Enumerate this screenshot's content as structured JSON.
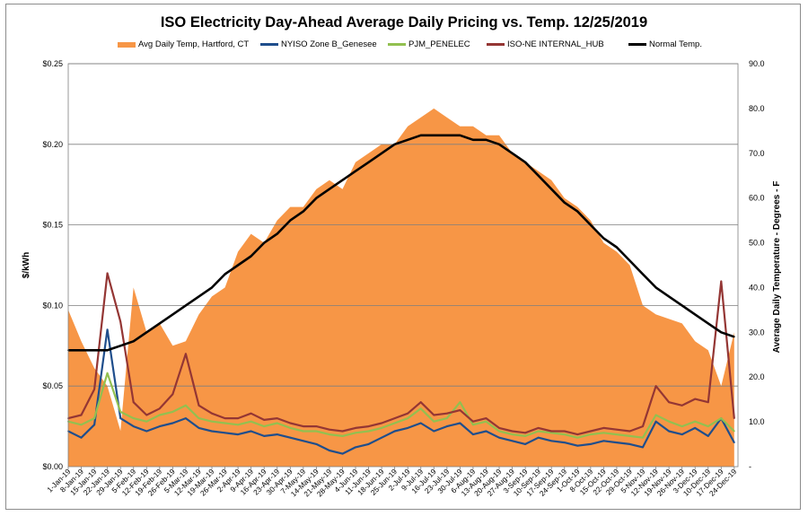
{
  "chart_data": {
    "type": "line",
    "title": "ISO Electricity Day-Ahead Average Daily Pricing vs. Temp. 12/25/2019",
    "ylabel": "$/kWh",
    "y2label": "Average Daily Temperature - Degrees - F",
    "ylim": [
      0,
      0.25
    ],
    "y2lim": [
      0,
      90
    ],
    "y_ticks": [
      "$0.00",
      "$0.05",
      "$0.10",
      "$0.15",
      "$0.20",
      "$0.25"
    ],
    "y2_ticks": [
      "-",
      "10.0",
      "20.0",
      "30.0",
      "40.0",
      "50.0",
      "60.0",
      "70.0",
      "80.0",
      "90.0"
    ],
    "grid": true,
    "legend_position": "top",
    "x_start": "2019-01-01",
    "x_end": "2019-12-26",
    "x_tick_labels": [
      "1-Jan-19",
      "8-Jan-19",
      "15-Jan-19",
      "22-Jan-19",
      "29-Jan-19",
      "5-Feb-19",
      "12-Feb-19",
      "19-Feb-19",
      "26-Feb-19",
      "5-Mar-19",
      "12-Mar-19",
      "19-Mar-19",
      "26-Mar-19",
      "2-Apr-19",
      "9-Apr-19",
      "16-Apr-19",
      "23-Apr-19",
      "30-Apr-19",
      "7-May-19",
      "14-May-19",
      "21-May-19",
      "28-May-19",
      "4-Jun-19",
      "11-Jun-19",
      "18-Jun-19",
      "25-Jun-19",
      "2-Jul-19",
      "9-Jul-19",
      "16-Jul-19",
      "23-Jul-19",
      "30-Jul-19",
      "6-Aug-19",
      "13-Aug-19",
      "20-Aug-19",
      "27-Aug-19",
      "3-Sep-19",
      "10-Sep-19",
      "17-Sep-19",
      "24-Sep-19",
      "1-Oct-19",
      "8-Oct-19",
      "15-Oct-19",
      "22-Oct-19",
      "29-Oct-19",
      "5-Nov-19",
      "12-Nov-19",
      "19-Nov-19",
      "26-Nov-19",
      "3-Dec-19",
      "10-Dec-19",
      "17-Dec-19",
      "24-Dec-19"
    ],
    "series": [
      {
        "name": "Avg Daily Temp, Hartford, CT",
        "kind": "area",
        "axis": "right",
        "color": "#f79646",
        "x": [
          "1-Jan-19",
          "8-Jan-19",
          "15-Jan-19",
          "22-Jan-19",
          "29-Jan-19",
          "5-Feb-19",
          "12-Feb-19",
          "19-Feb-19",
          "26-Feb-19",
          "5-Mar-19",
          "12-Mar-19",
          "19-Mar-19",
          "26-Mar-19",
          "2-Apr-19",
          "9-Apr-19",
          "16-Apr-19",
          "23-Apr-19",
          "30-Apr-19",
          "7-May-19",
          "14-May-19",
          "21-May-19",
          "28-May-19",
          "4-Jun-19",
          "11-Jun-19",
          "18-Jun-19",
          "25-Jun-19",
          "2-Jul-19",
          "9-Jul-19",
          "16-Jul-19",
          "23-Jul-19",
          "30-Jul-19",
          "6-Aug-19",
          "13-Aug-19",
          "20-Aug-19",
          "27-Aug-19",
          "3-Sep-19",
          "10-Sep-19",
          "17-Sep-19",
          "24-Sep-19",
          "1-Oct-19",
          "8-Oct-19",
          "15-Oct-19",
          "22-Oct-19",
          "29-Oct-19",
          "5-Nov-19",
          "12-Nov-19",
          "19-Nov-19",
          "26-Nov-19",
          "3-Dec-19",
          "10-Dec-19",
          "17-Dec-19",
          "24-Dec-19"
        ],
        "values": [
          35,
          28,
          22,
          18,
          8,
          40,
          30,
          32,
          27,
          28,
          34,
          38,
          40,
          48,
          52,
          50,
          55,
          58,
          58,
          62,
          64,
          62,
          68,
          70,
          72,
          72,
          76,
          78,
          80,
          78,
          76,
          76,
          74,
          74,
          70,
          68,
          66,
          64,
          60,
          58,
          55,
          50,
          48,
          45,
          36,
          34,
          33,
          32,
          28,
          26,
          18,
          30
        ]
      },
      {
        "name": "NYISO Zone B_Genesee",
        "kind": "line",
        "axis": "left",
        "color": "#1f4e8c",
        "x": [
          "1-Jan-19",
          "8-Jan-19",
          "15-Jan-19",
          "22-Jan-19",
          "29-Jan-19",
          "5-Feb-19",
          "12-Feb-19",
          "19-Feb-19",
          "26-Feb-19",
          "5-Mar-19",
          "12-Mar-19",
          "19-Mar-19",
          "26-Mar-19",
          "2-Apr-19",
          "9-Apr-19",
          "16-Apr-19",
          "23-Apr-19",
          "30-Apr-19",
          "7-May-19",
          "14-May-19",
          "21-May-19",
          "28-May-19",
          "4-Jun-19",
          "11-Jun-19",
          "18-Jun-19",
          "25-Jun-19",
          "2-Jul-19",
          "9-Jul-19",
          "16-Jul-19",
          "23-Jul-19",
          "30-Jul-19",
          "6-Aug-19",
          "13-Aug-19",
          "20-Aug-19",
          "27-Aug-19",
          "3-Sep-19",
          "10-Sep-19",
          "17-Sep-19",
          "24-Sep-19",
          "1-Oct-19",
          "8-Oct-19",
          "15-Oct-19",
          "22-Oct-19",
          "29-Oct-19",
          "5-Nov-19",
          "12-Nov-19",
          "19-Nov-19",
          "26-Nov-19",
          "3-Dec-19",
          "10-Dec-19",
          "17-Dec-19",
          "24-Dec-19"
        ],
        "values": [
          0.022,
          0.018,
          0.026,
          0.085,
          0.03,
          0.025,
          0.022,
          0.025,
          0.027,
          0.03,
          0.024,
          0.022,
          0.021,
          0.02,
          0.022,
          0.019,
          0.02,
          0.018,
          0.016,
          0.014,
          0.01,
          0.008,
          0.012,
          0.014,
          0.018,
          0.022,
          0.024,
          0.027,
          0.022,
          0.025,
          0.027,
          0.02,
          0.022,
          0.018,
          0.016,
          0.014,
          0.018,
          0.016,
          0.015,
          0.013,
          0.014,
          0.016,
          0.015,
          0.014,
          0.012,
          0.028,
          0.022,
          0.02,
          0.024,
          0.019,
          0.03,
          0.015
        ]
      },
      {
        "name": "PJM_PENELEC",
        "kind": "line",
        "axis": "left",
        "color": "#92c050",
        "x": [
          "1-Jan-19",
          "8-Jan-19",
          "15-Jan-19",
          "22-Jan-19",
          "29-Jan-19",
          "5-Feb-19",
          "12-Feb-19",
          "19-Feb-19",
          "26-Feb-19",
          "5-Mar-19",
          "12-Mar-19",
          "19-Mar-19",
          "26-Mar-19",
          "2-Apr-19",
          "9-Apr-19",
          "16-Apr-19",
          "23-Apr-19",
          "30-Apr-19",
          "7-May-19",
          "14-May-19",
          "21-May-19",
          "28-May-19",
          "4-Jun-19",
          "11-Jun-19",
          "18-Jun-19",
          "25-Jun-19",
          "2-Jul-19",
          "9-Jul-19",
          "16-Jul-19",
          "23-Jul-19",
          "30-Jul-19",
          "6-Aug-19",
          "13-Aug-19",
          "20-Aug-19",
          "27-Aug-19",
          "3-Sep-19",
          "10-Sep-19",
          "17-Sep-19",
          "24-Sep-19",
          "1-Oct-19",
          "8-Oct-19",
          "15-Oct-19",
          "22-Oct-19",
          "29-Oct-19",
          "5-Nov-19",
          "12-Nov-19",
          "19-Nov-19",
          "26-Nov-19",
          "3-Dec-19",
          "10-Dec-19",
          "17-Dec-19",
          "24-Dec-19"
        ],
        "values": [
          0.028,
          0.026,
          0.03,
          0.058,
          0.034,
          0.03,
          0.028,
          0.032,
          0.034,
          0.038,
          0.03,
          0.028,
          0.027,
          0.026,
          0.028,
          0.025,
          0.027,
          0.024,
          0.022,
          0.022,
          0.02,
          0.019,
          0.021,
          0.022,
          0.024,
          0.027,
          0.03,
          0.036,
          0.028,
          0.03,
          0.04,
          0.026,
          0.028,
          0.022,
          0.02,
          0.019,
          0.022,
          0.021,
          0.02,
          0.018,
          0.02,
          0.021,
          0.02,
          0.019,
          0.018,
          0.032,
          0.028,
          0.025,
          0.028,
          0.025,
          0.03,
          0.022
        ]
      },
      {
        "name": "ISO-NE INTERNAL_HUB",
        "kind": "line",
        "axis": "left",
        "color": "#943634",
        "x": [
          "1-Jan-19",
          "8-Jan-19",
          "15-Jan-19",
          "22-Jan-19",
          "29-Jan-19",
          "5-Feb-19",
          "12-Feb-19",
          "19-Feb-19",
          "26-Feb-19",
          "5-Mar-19",
          "12-Mar-19",
          "19-Mar-19",
          "26-Mar-19",
          "2-Apr-19",
          "9-Apr-19",
          "16-Apr-19",
          "23-Apr-19",
          "30-Apr-19",
          "7-May-19",
          "14-May-19",
          "21-May-19",
          "28-May-19",
          "4-Jun-19",
          "11-Jun-19",
          "18-Jun-19",
          "25-Jun-19",
          "2-Jul-19",
          "9-Jul-19",
          "16-Jul-19",
          "23-Jul-19",
          "30-Jul-19",
          "6-Aug-19",
          "13-Aug-19",
          "20-Aug-19",
          "27-Aug-19",
          "3-Sep-19",
          "10-Sep-19",
          "17-Sep-19",
          "24-Sep-19",
          "1-Oct-19",
          "8-Oct-19",
          "15-Oct-19",
          "22-Oct-19",
          "29-Oct-19",
          "5-Nov-19",
          "12-Nov-19",
          "19-Nov-19",
          "26-Nov-19",
          "3-Dec-19",
          "10-Dec-19",
          "17-Dec-19",
          "24-Dec-19"
        ],
        "values": [
          0.03,
          0.032,
          0.048,
          0.12,
          0.09,
          0.04,
          0.032,
          0.036,
          0.045,
          0.07,
          0.038,
          0.033,
          0.03,
          0.03,
          0.033,
          0.029,
          0.03,
          0.027,
          0.025,
          0.025,
          0.023,
          0.022,
          0.024,
          0.025,
          0.027,
          0.03,
          0.033,
          0.04,
          0.032,
          0.033,
          0.035,
          0.028,
          0.03,
          0.024,
          0.022,
          0.021,
          0.024,
          0.022,
          0.022,
          0.02,
          0.022,
          0.024,
          0.023,
          0.022,
          0.025,
          0.05,
          0.04,
          0.038,
          0.042,
          0.04,
          0.115,
          0.03
        ]
      },
      {
        "name": "Normal Temp.",
        "kind": "line",
        "axis": "right",
        "color": "#000000",
        "x": [
          "1-Jan-19",
          "8-Jan-19",
          "15-Jan-19",
          "22-Jan-19",
          "29-Jan-19",
          "5-Feb-19",
          "12-Feb-19",
          "19-Feb-19",
          "26-Feb-19",
          "5-Mar-19",
          "12-Mar-19",
          "19-Mar-19",
          "26-Mar-19",
          "2-Apr-19",
          "9-Apr-19",
          "16-Apr-19",
          "23-Apr-19",
          "30-Apr-19",
          "7-May-19",
          "14-May-19",
          "21-May-19",
          "28-May-19",
          "4-Jun-19",
          "11-Jun-19",
          "18-Jun-19",
          "25-Jun-19",
          "2-Jul-19",
          "9-Jul-19",
          "16-Jul-19",
          "23-Jul-19",
          "30-Jul-19",
          "6-Aug-19",
          "13-Aug-19",
          "20-Aug-19",
          "27-Aug-19",
          "3-Sep-19",
          "10-Sep-19",
          "17-Sep-19",
          "24-Sep-19",
          "1-Oct-19",
          "8-Oct-19",
          "15-Oct-19",
          "22-Oct-19",
          "29-Oct-19",
          "5-Nov-19",
          "12-Nov-19",
          "19-Nov-19",
          "26-Nov-19",
          "3-Dec-19",
          "10-Dec-19",
          "17-Dec-19",
          "24-Dec-19"
        ],
        "values": [
          26,
          26,
          26,
          26,
          27,
          28,
          30,
          32,
          34,
          36,
          38,
          40,
          43,
          45,
          47,
          50,
          52,
          55,
          57,
          60,
          62,
          64,
          66,
          68,
          70,
          72,
          73,
          74,
          74,
          74,
          74,
          73,
          73,
          72,
          70,
          68,
          65,
          62,
          59,
          57,
          54,
          51,
          49,
          46,
          43,
          40,
          38,
          36,
          34,
          32,
          30,
          29
        ]
      }
    ]
  }
}
